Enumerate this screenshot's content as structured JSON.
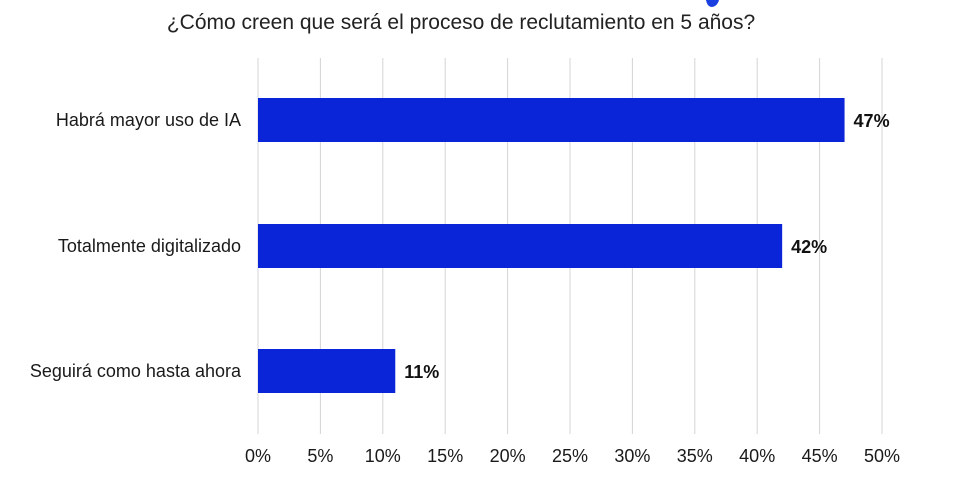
{
  "chart_data": {
    "type": "bar",
    "orientation": "horizontal",
    "title": "¿Cómo creen que será el proceso de reclutamiento en 5 años?",
    "categories": [
      "Habrá mayor uso de IA",
      "Totalmente digitalizado",
      "Seguirá como hasta ahora"
    ],
    "values": [
      47,
      42,
      11
    ],
    "data_labels": [
      "47%",
      "42%",
      "11%"
    ],
    "x_ticks": [
      "0%",
      "5%",
      "10%",
      "15%",
      "20%",
      "25%",
      "30%",
      "35%",
      "40%",
      "45%",
      "50%"
    ],
    "xlim": [
      0,
      50
    ],
    "xlabel": "",
    "ylabel": "",
    "grid": true,
    "legend": "none",
    "bar_color": "#0a24d8",
    "partial_mark_color": "#1a3fe0"
  }
}
